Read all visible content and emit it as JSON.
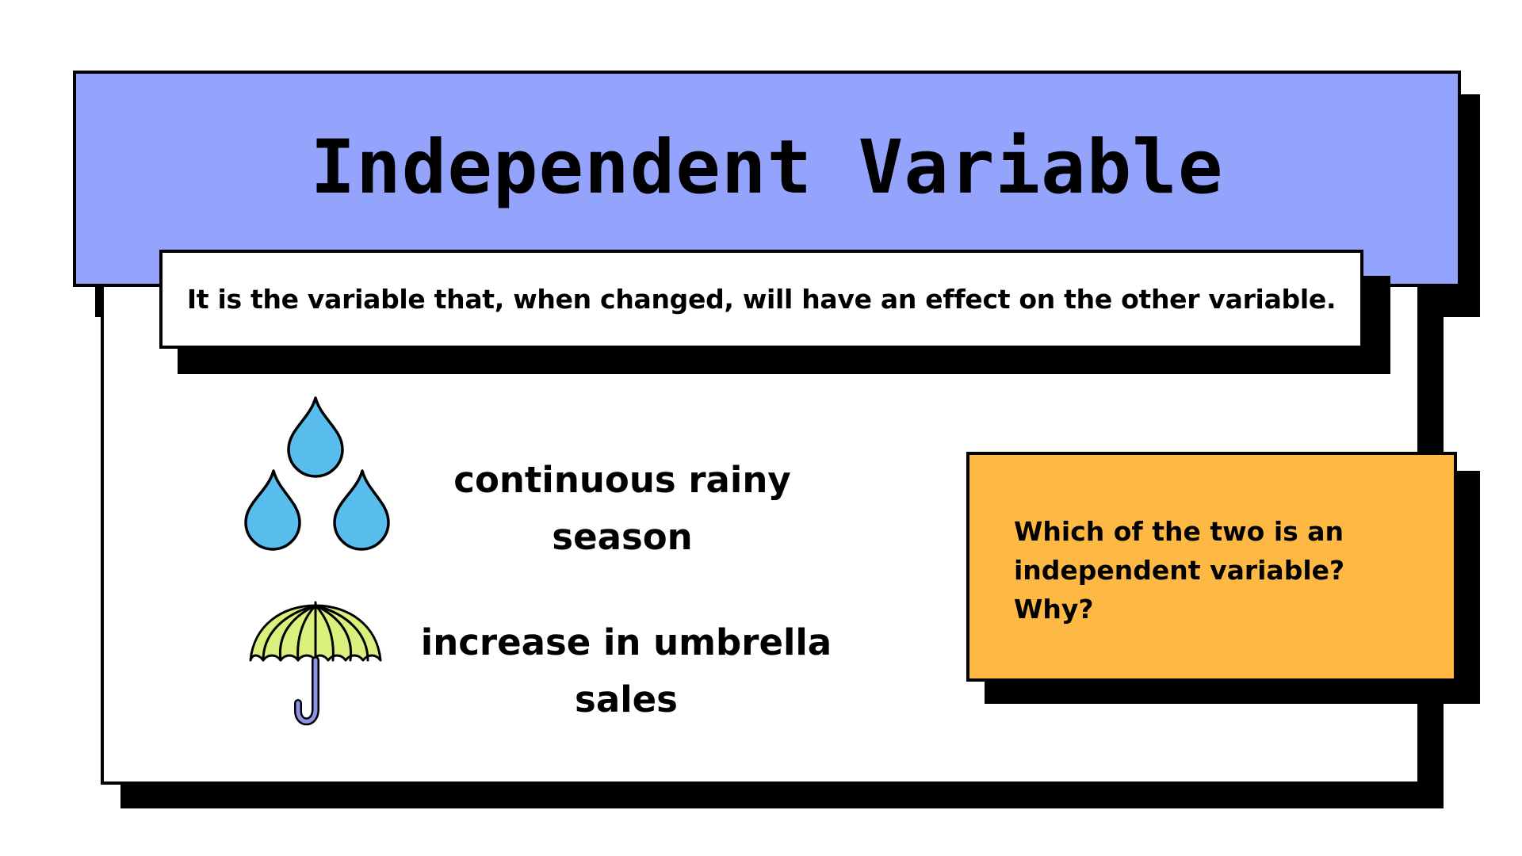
{
  "title": "Independent Variable",
  "definition": "It is the variable that, when changed, will have an effect on the other variable.",
  "examples": [
    {
      "icon": "raindrops-icon",
      "lines": [
        "continuous rainy",
        "season"
      ]
    },
    {
      "icon": "umbrella-icon",
      "lines": [
        "increase in umbrella",
        "sales"
      ]
    }
  ],
  "question": {
    "lines": [
      "Which of the two is an",
      "independent variable?",
      "Why?"
    ]
  },
  "colors": {
    "banner": "#94a3fc",
    "question_box": "#fdb944",
    "raindrop": "#58bcec",
    "umbrella_canopy": "#daf07d",
    "umbrella_handle": "#8f93e6"
  }
}
